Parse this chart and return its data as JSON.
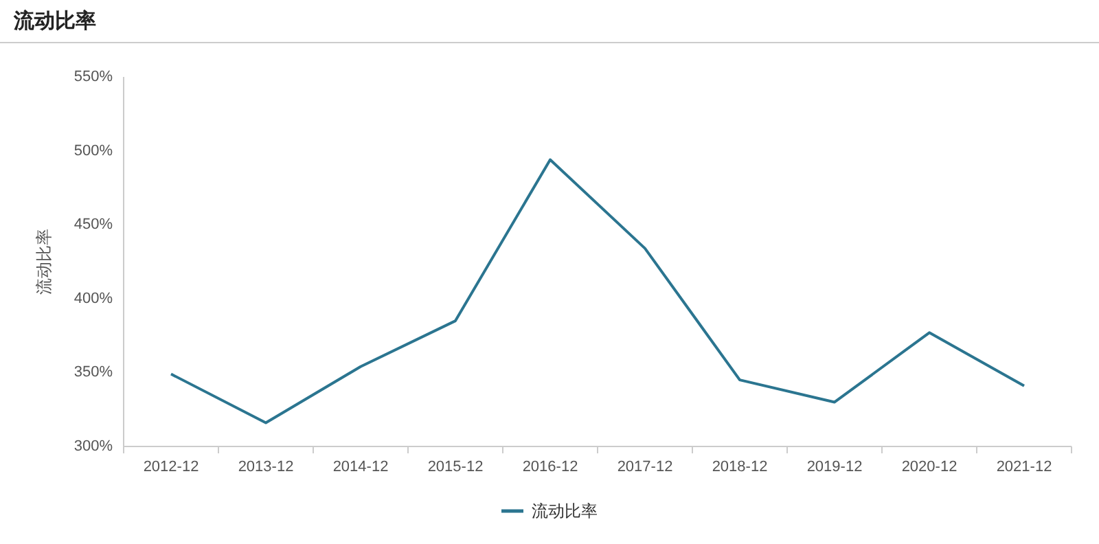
{
  "chart_data": {
    "type": "line",
    "title": "流动比率",
    "ylabel": "流动比率",
    "categories": [
      "2012-12",
      "2013-12",
      "2014-12",
      "2015-12",
      "2016-12",
      "2017-12",
      "2018-12",
      "2019-12",
      "2020-12",
      "2021-12"
    ],
    "series": [
      {
        "name": "流动比率",
        "color": "#2b7590",
        "values": [
          349,
          316,
          354,
          385,
          494,
          434,
          345,
          330,
          377,
          341
        ]
      }
    ],
    "ylim": [
      300,
      550
    ],
    "yticks": [
      {
        "value": 300,
        "label": "300%"
      },
      {
        "value": 350,
        "label": "350%"
      },
      {
        "value": 400,
        "label": "400%"
      },
      {
        "value": 450,
        "label": "450%"
      },
      {
        "value": 500,
        "label": "500%"
      },
      {
        "value": 550,
        "label": "550%"
      }
    ],
    "grid": false,
    "legend": "bottom",
    "marker": "none",
    "line_style": "solid"
  }
}
